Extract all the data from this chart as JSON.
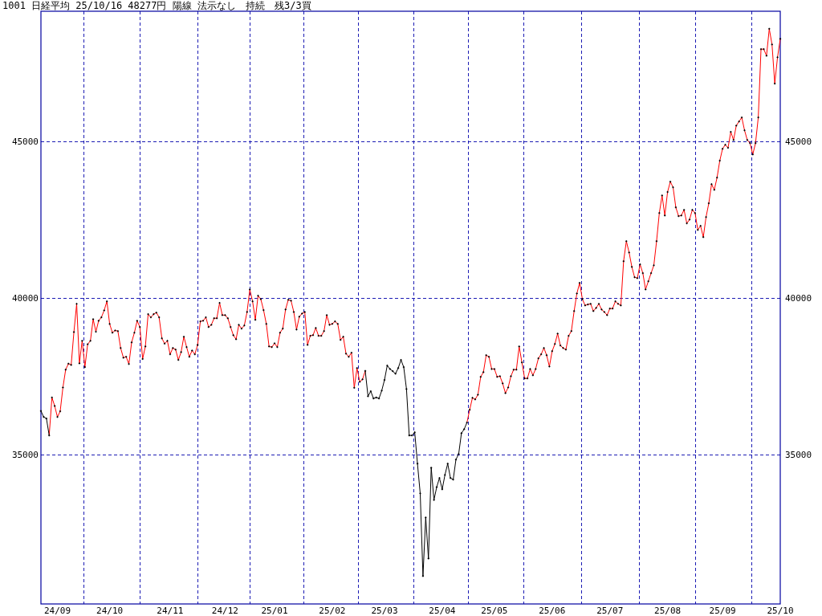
{
  "chart_data": {
    "type": "line",
    "title": "1001 日経平均 25/10/16 48277円 陽線 法示なし　持続　残3/3買",
    "categories": [
      null,
      null,
      null,
      null,
      null,
      null,
      "24/09",
      null,
      null,
      null,
      null,
      null,
      null,
      null,
      null,
      null,
      null,
      null,
      null,
      null,
      null,
      null,
      null,
      null,
      null,
      "24/10",
      null,
      null,
      null,
      null,
      null,
      null,
      null,
      null,
      null,
      null,
      null,
      null,
      null,
      null,
      null,
      null,
      null,
      null,
      null,
      null,
      null,
      "24/11",
      null,
      null,
      null,
      null,
      null,
      null,
      null,
      null,
      null,
      null,
      null,
      null,
      null,
      null,
      null,
      null,
      null,
      null,
      null,
      "24/12",
      null,
      null,
      null,
      null,
      null,
      null,
      null,
      null,
      null,
      null,
      null,
      null,
      null,
      null,
      null,
      null,
      null,
      "25/01",
      null,
      null,
      null,
      null,
      null,
      null,
      null,
      null,
      null,
      null,
      null,
      null,
      null,
      null,
      null,
      null,
      null,
      null,
      null,
      null,
      "25/02",
      null,
      null,
      null,
      null,
      null,
      null,
      null,
      null,
      null,
      null,
      null,
      null,
      null,
      null,
      null,
      null,
      null,
      null,
      "25/03",
      null,
      null,
      null,
      null,
      null,
      null,
      null,
      null,
      null,
      null,
      null,
      null,
      null,
      null,
      null,
      null,
      null,
      null,
      null,
      null,
      "25/04",
      null,
      null,
      null,
      null,
      null,
      null,
      null,
      null,
      null,
      null,
      null,
      null,
      null,
      null,
      null,
      null,
      null,
      null,
      "25/05",
      null,
      null,
      null,
      null,
      null,
      null,
      null,
      null,
      null,
      null,
      null,
      null,
      null,
      null,
      null,
      null,
      null,
      null,
      null,
      null,
      "25/06",
      null,
      null,
      null,
      null,
      null,
      null,
      null,
      null,
      null,
      null,
      null,
      null,
      null,
      null,
      null,
      null,
      null,
      null,
      null,
      null,
      "25/07",
      null,
      null,
      null,
      null,
      null,
      null,
      null,
      null,
      null,
      null,
      null,
      null,
      null,
      null,
      null,
      null,
      null,
      null,
      null,
      null,
      "25/08",
      null,
      null,
      null,
      null,
      null,
      null,
      null,
      null,
      null,
      null,
      null,
      null,
      null,
      null,
      null,
      null,
      null,
      null,
      null,
      "25/09",
      null,
      null,
      null,
      null,
      null,
      null,
      null,
      null,
      null,
      null,
      null,
      null,
      null,
      null,
      null,
      null,
      null,
      null,
      null,
      null,
      "25/10"
    ],
    "ylim": [
      30240,
      49160
    ],
    "yticks": [
      35000,
      40000,
      45000
    ],
    "y2lim": [
      30240,
      49160
    ],
    "y2ticks": [
      35000,
      40000,
      45000
    ],
    "grid": true,
    "series": [
      {
        "type": "line",
        "color": "#ff0000",
        "values": [
          null,
          null,
          null,
          35620,
          36830,
          36560,
          36210,
          36390,
          37150,
          37720,
          37910,
          37870,
          38920,
          39820,
          37920,
          38640,
          37800,
          38530,
          38640,
          39330,
          38930,
          39280,
          39390,
          39610,
          39900,
          39180,
          38900,
          38970,
          38950,
          38410,
          38100,
          38130,
          37900,
          38590,
          38900,
          39280,
          39080,
          38060,
          38460,
          39490,
          39390,
          39490,
          39540,
          39390,
          38720,
          38550,
          38640,
          38210,
          38410,
          38360,
          38030,
          38280,
          38770,
          38440,
          38130,
          38330,
          38210,
          38510,
          39260,
          39280,
          39390,
          39080,
          39150,
          39360,
          39360,
          39850,
          39460,
          39460,
          39360,
          39080,
          38820,
          38690,
          39150,
          39030,
          39130,
          39560,
          40280,
          39900,
          39310,
          40080,
          39970,
          39620,
          39180,
          38460,
          38440,
          38560,
          38440,
          38900,
          39030,
          39640,
          39950,
          39920,
          39560,
          39000,
          39410,
          39510,
          39560,
          38510,
          38800,
          38820,
          39050,
          38800,
          38800,
          38950,
          39460,
          39150,
          39180,
          39260,
          39180,
          38670,
          38770,
          38230,
          38130,
          38260,
          37140,
          37770,
          37330,
          37410,
          37680,
          null,
          null,
          null,
          null,
          null,
          null,
          null,
          null,
          null,
          null,
          null,
          null,
          null,
          null,
          null,
          null,
          null,
          null,
          null,
          null,
          null,
          null,
          null,
          null,
          null,
          null,
          null,
          null,
          null,
          null,
          null,
          null,
          null,
          null,
          null,
          null,
          36030,
          36440,
          36820,
          36770,
          36920,
          37490,
          37640,
          38180,
          38130,
          37740,
          37740,
          37490,
          37510,
          37280,
          36970,
          37150,
          37510,
          37720,
          37720,
          38460,
          37950,
          37440,
          37440,
          37740,
          37540,
          37740,
          38080,
          38210,
          38410,
          38180,
          37820,
          38310,
          38540,
          38870,
          38490,
          38410,
          38360,
          38800,
          38950,
          39590,
          40150,
          40490,
          39970,
          39770,
          39800,
          39820,
          39590,
          39690,
          39820,
          39640,
          39560,
          39460,
          39670,
          39670,
          39900,
          39820,
          39770,
          41180,
          41820,
          41460,
          41000,
          40670,
          40640,
          41080,
          40800,
          40280,
          40540,
          40800,
          41050,
          41820,
          42720,
          43280,
          42640,
          43390,
          43720,
          43540,
          42900,
          42620,
          42640,
          42820,
          42390,
          42510,
          42820,
          42720,
          42180,
          42310,
          41950,
          42590,
          43030,
          43640,
          43460,
          43850,
          44390,
          44770,
          44900,
          44800,
          45310,
          45050,
          45510,
          45640,
          45770,
          45360,
          45050,
          44950,
          44590,
          44950,
          45770,
          47950,
          47950,
          47740,
          48600,
          48100,
          46850,
          47690,
          48280
        ]
      },
      {
        "type": "line",
        "color": "#000000",
        "values": [
          36400,
          36210,
          36160,
          35620,
          null,
          null,
          null,
          null,
          null,
          null,
          null,
          null,
          null,
          null,
          null,
          null,
          null,
          null,
          null,
          null,
          null,
          null,
          null,
          null,
          null,
          null,
          null,
          null,
          null,
          null,
          null,
          null,
          null,
          null,
          null,
          null,
          null,
          null,
          null,
          null,
          null,
          null,
          null,
          null,
          null,
          null,
          null,
          null,
          null,
          null,
          null,
          null,
          null,
          null,
          null,
          null,
          null,
          null,
          null,
          null,
          null,
          null,
          null,
          null,
          null,
          null,
          null,
          null,
          null,
          null,
          null,
          null,
          null,
          null,
          null,
          null,
          null,
          null,
          null,
          null,
          null,
          null,
          null,
          null,
          null,
          null,
          null,
          null,
          null,
          null,
          null,
          null,
          null,
          null,
          null,
          null,
          null,
          null,
          null,
          null,
          null,
          null,
          null,
          null,
          null,
          null,
          null,
          null,
          null,
          null,
          null,
          null,
          null,
          null,
          null,
          null,
          null,
          null,
          37680,
          36870,
          37030,
          36800,
          36830,
          36800,
          37050,
          37390,
          37850,
          37740,
          37670,
          37590,
          37770,
          38030,
          37800,
          37100,
          35620,
          35620,
          35720,
          34720,
          33770,
          31130,
          33000,
          31690,
          34590,
          33560,
          33970,
          34260,
          33900,
          34360,
          34720,
          34260,
          34210,
          34850,
          35030,
          35690,
          35820,
          36030,
          null,
          null,
          null,
          null,
          null,
          null,
          null,
          null,
          null,
          null,
          null,
          null,
          null,
          null,
          null,
          null,
          null,
          null,
          null,
          null,
          null,
          null,
          null,
          null,
          null,
          null,
          null,
          null,
          null,
          null,
          null,
          null,
          null,
          null,
          null,
          null,
          null,
          null,
          null,
          null,
          null,
          null,
          null,
          null,
          null,
          null,
          null,
          null,
          null,
          null,
          null,
          null,
          null,
          null,
          null,
          null,
          null,
          null,
          null,
          null,
          null,
          null,
          null,
          null,
          null,
          null,
          null,
          null,
          null,
          null,
          null,
          null,
          null,
          null,
          null,
          null,
          null,
          null,
          null,
          null,
          null,
          null,
          null,
          null,
          null,
          null,
          null,
          null,
          null,
          null,
          null,
          null,
          null,
          null,
          null,
          null,
          null,
          null,
          null,
          null,
          null,
          null,
          null,
          null,
          null,
          null,
          null,
          null,
          null,
          null,
          null,
          null,
          null,
          null
        ]
      },
      {
        "type": "scatter",
        "color": "#000000",
        "marker": "cross",
        "values": [
          36400,
          36210,
          36160,
          35620,
          36830,
          36560,
          36210,
          36390,
          37150,
          37720,
          37910,
          37870,
          38920,
          39820,
          37920,
          38640,
          37800,
          38530,
          38640,
          39330,
          38930,
          39280,
          39390,
          39610,
          39900,
          39180,
          38900,
          38970,
          38950,
          38410,
          38100,
          38130,
          37900,
          38590,
          38900,
          39280,
          39080,
          38060,
          38460,
          39490,
          39390,
          39490,
          39540,
          39390,
          38720,
          38550,
          38640,
          38210,
          38410,
          38360,
          38030,
          38280,
          38770,
          38440,
          38130,
          38330,
          38210,
          38510,
          39260,
          39280,
          39390,
          39080,
          39150,
          39360,
          39360,
          39850,
          39460,
          39460,
          39360,
          39080,
          38820,
          38690,
          39150,
          39030,
          39130,
          39560,
          40280,
          39900,
          39310,
          40080,
          39970,
          39620,
          39180,
          38460,
          38440,
          38560,
          38440,
          38900,
          39030,
          39640,
          39950,
          39920,
          39560,
          39000,
          39410,
          39510,
          39560,
          38510,
          38800,
          38820,
          39050,
          38800,
          38800,
          38950,
          39460,
          39150,
          39180,
          39260,
          39180,
          38670,
          38770,
          38230,
          38130,
          38260,
          37140,
          37770,
          37330,
          37410,
          37680,
          36870,
          37030,
          36800,
          36830,
          36800,
          37050,
          37390,
          37850,
          37740,
          37670,
          37590,
          37770,
          38030,
          37800,
          37100,
          35620,
          35620,
          35720,
          34720,
          33770,
          31130,
          33000,
          31690,
          34590,
          33560,
          33970,
          34260,
          33900,
          34360,
          34720,
          34260,
          34210,
          34850,
          35030,
          35690,
          35820,
          36030,
          36440,
          36820,
          36770,
          36920,
          37490,
          37640,
          38180,
          38130,
          37740,
          37740,
          37490,
          37510,
          37280,
          36970,
          37150,
          37510,
          37720,
          37720,
          38460,
          37950,
          37440,
          37440,
          37740,
          37540,
          37740,
          38080,
          38210,
          38410,
          38180,
          37820,
          38310,
          38540,
          38870,
          38490,
          38410,
          38360,
          38800,
          38950,
          39590,
          40150,
          40490,
          39970,
          39770,
          39800,
          39820,
          39590,
          39690,
          39820,
          39640,
          39560,
          39460,
          39670,
          39670,
          39900,
          39820,
          39770,
          41180,
          41820,
          41460,
          41000,
          40670,
          40640,
          41080,
          40800,
          40280,
          40540,
          40800,
          41050,
          41820,
          42720,
          43280,
          42640,
          43390,
          43720,
          43540,
          42900,
          42620,
          42640,
          42820,
          42390,
          42510,
          42820,
          42720,
          42180,
          42310,
          41950,
          42590,
          43030,
          43640,
          43460,
          43850,
          44390,
          44770,
          44900,
          44800,
          45310,
          45050,
          45510,
          45640,
          45770,
          45360,
          45050,
          44950,
          44590,
          44950,
          45770,
          47950,
          47950,
          47740,
          48600,
          48100,
          46850,
          47690,
          48280
        ]
      }
    ]
  }
}
